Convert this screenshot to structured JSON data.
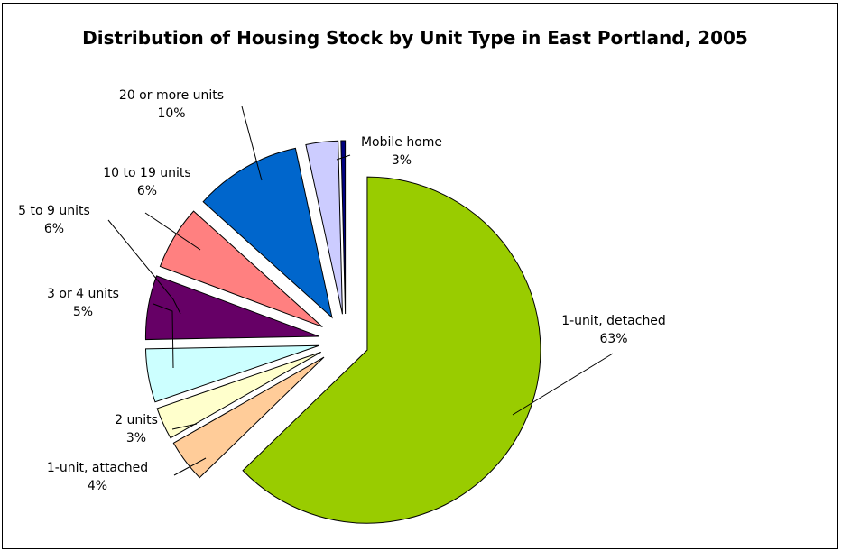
{
  "chart_data": {
    "type": "pie",
    "title": "Distribution of Housing Stock by Unit Type in East Portland, 2005",
    "start_angle_deg": 0,
    "direction": "clockwise",
    "exploded": true,
    "slices": [
      {
        "label": "1-unit, detached",
        "percent_label": "63%",
        "value": 63,
        "color": "#99CC00"
      },
      {
        "label": "1-unit, attached",
        "percent_label": "4%",
        "value": 4,
        "color": "#FFCC99"
      },
      {
        "label": "2 units",
        "percent_label": "3%",
        "value": 3,
        "color": "#FFFFCC"
      },
      {
        "label": "3 or 4 units",
        "percent_label": "5%",
        "value": 5,
        "color": "#CCFFFF"
      },
      {
        "label": "5 to 9 units",
        "percent_label": "6%",
        "value": 6,
        "color": "#660066"
      },
      {
        "label": "10 to 19 units",
        "percent_label": "6%",
        "value": 6,
        "color": "#FF8080"
      },
      {
        "label": "20 or more units",
        "percent_label": "10%",
        "value": 10,
        "color": "#0066CC"
      },
      {
        "label": "Mobile home",
        "percent_label": "3%",
        "value": 3,
        "color": "#CCCCFF"
      },
      {
        "label": "",
        "percent_label": "",
        "value": 0.4,
        "color": "#000080"
      }
    ]
  }
}
